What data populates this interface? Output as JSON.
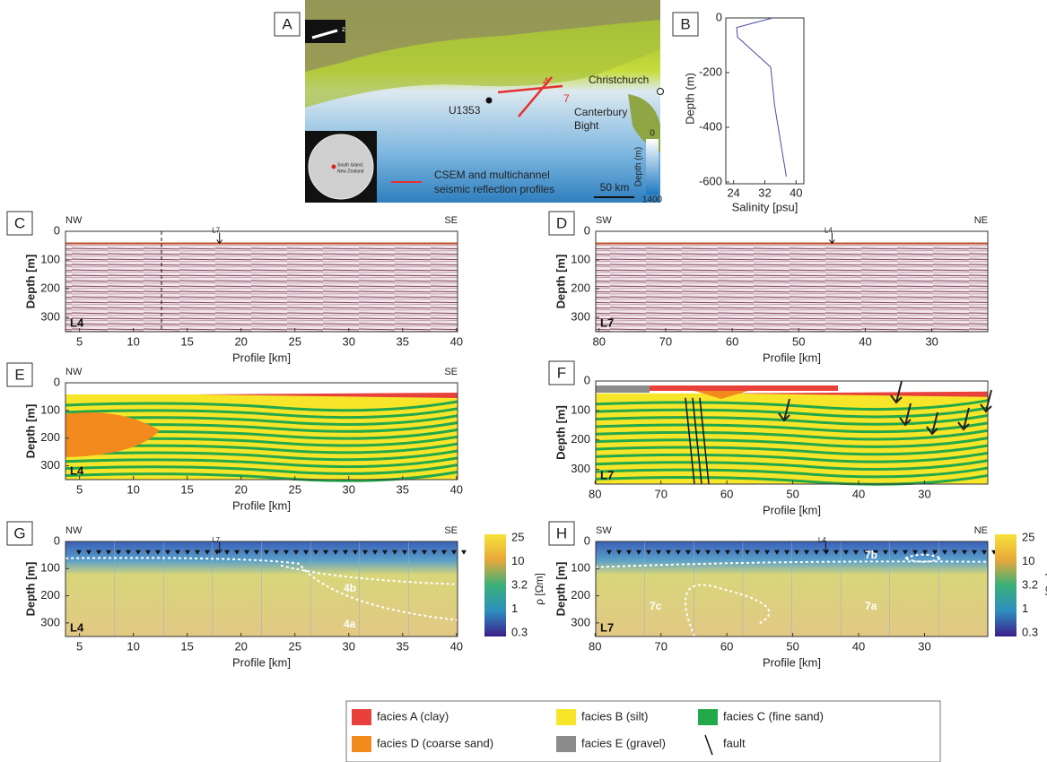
{
  "A": {
    "letter": "A",
    "north": "z",
    "christchurch": "Christchurch",
    "site": "U1353",
    "bight": [
      "Canterbury",
      "Bight"
    ],
    "line4": "4",
    "line7": "7",
    "profiles": [
      "CSEM and multichannel",
      "seismic reflection profiles"
    ],
    "scale": "50 km",
    "depth_label": "Depth (m)",
    "depth_min": "0",
    "depth_max": "1400",
    "inset": [
      "South Island,",
      "New Zealand"
    ]
  },
  "B": {
    "letter": "B",
    "xlabel": "Salinity [psu]",
    "ylabel": "Depth (m)",
    "xticks": [
      24,
      32,
      40
    ],
    "xlim": [
      22,
      42
    ],
    "yticks": [
      0,
      -200,
      -400,
      -600
    ],
    "ylim": [
      -600,
      0
    ],
    "salinity": [
      34,
      24.8,
      25,
      33.5,
      34.5,
      37.5
    ],
    "depth": [
      0,
      -35,
      -70,
      -180,
      -320,
      -580
    ]
  },
  "panels": [
    {
      "letter": "C",
      "left": "NW",
      "right": "SE",
      "line": "L4",
      "marker": "L7",
      "marker_at": 18,
      "kind": "seismic",
      "xlabel": "Profile [km]",
      "ylabel": "Depth [m]",
      "xticks": [
        5,
        10,
        15,
        20,
        25,
        30,
        35,
        40
      ],
      "xlim": [
        3.7,
        40.1
      ],
      "yticks": [
        0,
        100,
        200,
        300
      ],
      "ylim": [
        0,
        350
      ]
    },
    {
      "letter": "D",
      "left": "SW",
      "right": "NE",
      "line": "L7",
      "marker": "L4",
      "marker_at": 45,
      "kind": "seismic",
      "xlabel": "Profile [km]",
      "ylabel": "Depth [m]",
      "xticks": [
        80,
        70,
        60,
        50,
        40,
        30
      ],
      "xlim": [
        80.5,
        21.6
      ],
      "yticks": [
        0,
        100,
        200,
        300
      ],
      "ylim": [
        0,
        350
      ]
    },
    {
      "letter": "E",
      "left": "NW",
      "right": "SE",
      "line": "L4",
      "kind": "facies",
      "xlabel": "Profile [km]",
      "ylabel": "Depth [m]",
      "xticks": [
        5,
        10,
        15,
        20,
        25,
        30,
        35,
        40
      ],
      "xlim": [
        3.7,
        40.1
      ],
      "yticks": [
        0,
        100,
        200,
        300
      ],
      "ylim": [
        0,
        350
      ]
    },
    {
      "letter": "F",
      "line": "L7",
      "kind": "facies",
      "xlabel": "Profile [km]",
      "ylabel": "Depth [m]",
      "xticks": [
        80,
        70,
        60,
        50,
        40,
        30
      ],
      "xlim": [
        79.9,
        20.4
      ],
      "yticks": [
        0,
        100,
        200,
        300
      ],
      "ylim": [
        0,
        350
      ]
    },
    {
      "letter": "G",
      "left": "NW",
      "right": "SE",
      "line": "L4",
      "marker": "L7",
      "marker_at": 18,
      "kind": "resistivity",
      "zones": [
        "4a",
        "4b"
      ],
      "xlabel": "Profile [km]",
      "ylabel": "Depth [m]",
      "xticks": [
        5,
        10,
        15,
        20,
        25,
        30,
        35,
        40
      ],
      "xlim": [
        3.7,
        40.1
      ],
      "yticks": [
        0,
        100,
        200,
        300
      ],
      "ylim": [
        0,
        350
      ],
      "colorbar": {
        "label": "ρ [Ωm]",
        "ticks": [
          "25",
          "10",
          "3.2",
          "1",
          "0.3"
        ]
      }
    },
    {
      "letter": "H",
      "left": "SW",
      "right": "NE",
      "line": "L7",
      "marker": "L4",
      "marker_at": 45,
      "kind": "resistivity",
      "zones": [
        "7a",
        "7b",
        "7c"
      ],
      "xlabel": "Profile [km]",
      "ylabel": "Depth [m]",
      "xticks": [
        80,
        70,
        60,
        50,
        40,
        30
      ],
      "xlim": [
        79.9,
        20.4
      ],
      "yticks": [
        0,
        100,
        200,
        300
      ],
      "ylim": [
        0,
        350
      ],
      "colorbar": {
        "label": "ρ [Ωm]",
        "ticks": [
          "25",
          "10",
          "3.2",
          "1",
          "0.3"
        ]
      }
    }
  ],
  "legend": [
    {
      "label": "facies A (clay)",
      "color": "#e8403a"
    },
    {
      "label": "facies B (silt)",
      "color": "#f7e52a"
    },
    {
      "label": "facies C (fine sand)",
      "color": "#23a84a"
    },
    {
      "label": "facies D (coarse sand)",
      "color": "#f28a1e"
    },
    {
      "label": "facies E (gravel)",
      "color": "#8c8c8c"
    },
    {
      "label": "fault"
    }
  ]
}
